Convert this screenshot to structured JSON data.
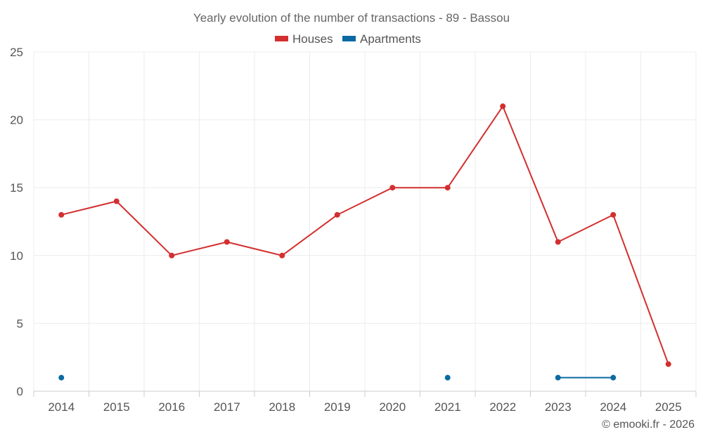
{
  "chart_data": {
    "type": "line",
    "title": "Yearly evolution of the number of transactions - 89 - Bassou",
    "categories": [
      "2014",
      "2015",
      "2016",
      "2017",
      "2018",
      "2019",
      "2020",
      "2021",
      "2022",
      "2023",
      "2024",
      "2025"
    ],
    "series": [
      {
        "name": "Houses",
        "color": "#d32f2f",
        "values": [
          13,
          14,
          10,
          11,
          10,
          13,
          15,
          15,
          21,
          11,
          13,
          2
        ]
      },
      {
        "name": "Apartments",
        "color": "#0b6aa2",
        "values": [
          1,
          null,
          null,
          null,
          null,
          null,
          null,
          1,
          null,
          1,
          1,
          null
        ]
      }
    ],
    "ylim": [
      0,
      25
    ],
    "yticks": [
      0,
      5,
      10,
      15,
      20,
      25
    ],
    "xlabel": "",
    "ylabel": "",
    "grid": true,
    "legend": "top-center"
  },
  "credit": "© emooki.fr - 2026"
}
